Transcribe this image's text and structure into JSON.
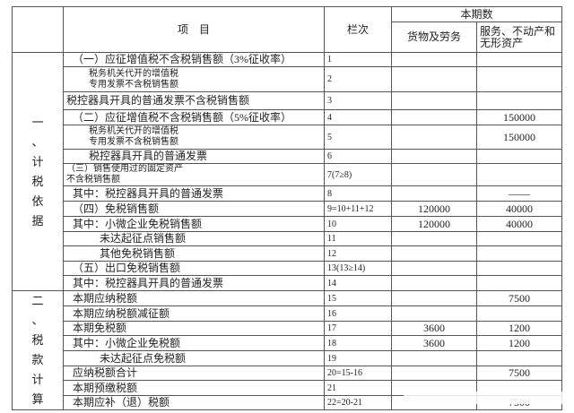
{
  "header": {
    "item": "项　目",
    "line_no": "栏次",
    "current_period": "本期数",
    "goods": "货物及劳务",
    "services": "服务、不动产和无形资产"
  },
  "sections": [
    {
      "label": [
        "一",
        "、",
        "计",
        "税",
        "依",
        "据"
      ]
    },
    {
      "label": [
        "二",
        "、",
        "税",
        "款",
        "计",
        "算"
      ]
    }
  ],
  "rows": [
    {
      "item": "（一）应征增值税不含税销售额（3%征收率）",
      "line": "1",
      "goods": "",
      "services": ""
    },
    {
      "item": "税务机关代开的增值税\n专用发票不含税销售额",
      "line": "2",
      "goods": "",
      "services": ""
    },
    {
      "item": "税控器具开具的普通发票不含税销售额",
      "line": "3",
      "goods": "",
      "services": ""
    },
    {
      "item": "（二）应征增值税不含税销售额（5%征收率）",
      "line": "4",
      "goods": "",
      "services": "150000"
    },
    {
      "item": "税务机关代开的增值税\n专用发票不含税销售额",
      "line": "5",
      "goods": "",
      "services": "150000"
    },
    {
      "item": "税控器具开具的普通发票",
      "line": "6",
      "goods": "",
      "services": ""
    },
    {
      "item": "（三）销售使用过的固定资产\n不含税销售额",
      "line": "7(7≥8)",
      "goods": "",
      "services": ""
    },
    {
      "item": "其中：税控器具开具的普通发票",
      "line": "8",
      "goods": "",
      "services": "——"
    },
    {
      "item": "（四）免税销售额",
      "line": "9=10+11+12",
      "goods": "120000",
      "services": "40000"
    },
    {
      "item": "其中：小微企业免税销售额",
      "line": "10",
      "goods": "120000",
      "services": "40000"
    },
    {
      "item": "未达起征点销售额",
      "line": "11",
      "goods": "",
      "services": ""
    },
    {
      "item": "其他免税销售额",
      "line": "12",
      "goods": "",
      "services": ""
    },
    {
      "item": "（五）出口免税销售额",
      "line": "13(13≥14)",
      "goods": "",
      "services": ""
    },
    {
      "item": "其中：税控器具开具的普通发票",
      "line": "14",
      "goods": "",
      "services": ""
    },
    {
      "item": "本期应纳税额",
      "line": "15",
      "goods": "",
      "services": "7500"
    },
    {
      "item": "本期应纳税额减征额",
      "line": "16",
      "goods": "",
      "services": ""
    },
    {
      "item": "本期免税额",
      "line": "17",
      "goods": "3600",
      "services": "1200"
    },
    {
      "item": "其中：小微企业免税额",
      "line": "18",
      "goods": "3600",
      "services": "1200"
    },
    {
      "item": "未达起征点免税额",
      "line": "19",
      "goods": "",
      "services": ""
    },
    {
      "item": "应纳税额合计",
      "line": "20=15-16",
      "goods": "",
      "services": "7500"
    },
    {
      "item": "本期预缴税额",
      "line": "21",
      "goods": "",
      "services": ""
    },
    {
      "item": "本期应补（退）税额",
      "line": "22=20-21",
      "goods": "",
      "services": "7500"
    }
  ]
}
